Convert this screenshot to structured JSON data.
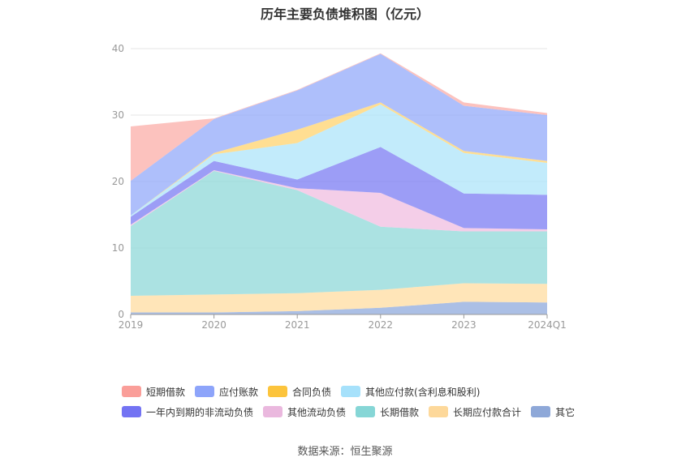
{
  "chart_data": {
    "type": "area",
    "title": "历年主要负债堆积图（亿元）",
    "categories": [
      "2019",
      "2020",
      "2021",
      "2022",
      "2023",
      "2024Q1"
    ],
    "y_ticks": [
      "0",
      "10",
      "20",
      "30",
      "40"
    ],
    "ylim": [
      0,
      40
    ],
    "stacked": true,
    "grid": true,
    "legend_position": "bottom",
    "series": [
      {
        "name": "其它",
        "color": "#8faadc",
        "values": [
          0.3,
          0.3,
          0.5,
          1.0,
          1.9,
          1.8
        ]
      },
      {
        "name": "长期应付款合计",
        "color": "#ffdca0",
        "values": [
          2.5,
          2.7,
          2.7,
          2.7,
          2.8,
          2.8
        ]
      },
      {
        "name": "长期借款",
        "color": "#8fd8d8",
        "values": [
          10.5,
          18.6,
          15.5,
          9.5,
          7.8,
          7.9
        ]
      },
      {
        "name": "其他流动负债",
        "color": "#f0bde0",
        "values": [
          0.2,
          0.1,
          0.3,
          5.1,
          0.5,
          0.3
        ]
      },
      {
        "name": "一年内到期的非流动负债",
        "color": "#7b7cf3",
        "values": [
          1.2,
          1.4,
          1.3,
          6.9,
          5.2,
          5.2
        ]
      },
      {
        "name": "其他应付款(含利息和股利)",
        "color": "#aee4fa",
        "values": [
          0.2,
          1.0,
          5.5,
          6.4,
          6.1,
          4.8
        ]
      },
      {
        "name": "合同负债",
        "color": "#ffd36e",
        "values": [
          0.0,
          0.2,
          2.0,
          0.3,
          0.3,
          0.3
        ]
      },
      {
        "name": "应付账款",
        "color": "#93aafa",
        "values": [
          5.2,
          5.1,
          5.9,
          7.3,
          6.8,
          6.9
        ]
      },
      {
        "name": "短期借款",
        "color": "#fbada8",
        "values": [
          8.2,
          0.1,
          0.1,
          0.1,
          0.5,
          0.3
        ]
      }
    ]
  },
  "legend_rows": [
    [
      {
        "name": "短期借款",
        "color": "#fa9e99"
      },
      {
        "name": "应付账款",
        "color": "#8da4fa"
      },
      {
        "name": "合同负债",
        "color": "#fcc43c"
      },
      {
        "name": "其他应付款(含利息和股利)",
        "color": "#a6e1fb"
      }
    ],
    [
      {
        "name": "一年内到期的非流动负债",
        "color": "#7373f3"
      },
      {
        "name": "其他流动负债",
        "color": "#eab8de"
      },
      {
        "name": "长期借款",
        "color": "#86d6d6"
      },
      {
        "name": "长期应付款合计",
        "color": "#fdd89a"
      },
      {
        "name": "其它",
        "color": "#8ea8d8"
      }
    ]
  ],
  "source": "数据来源：恒生聚源"
}
